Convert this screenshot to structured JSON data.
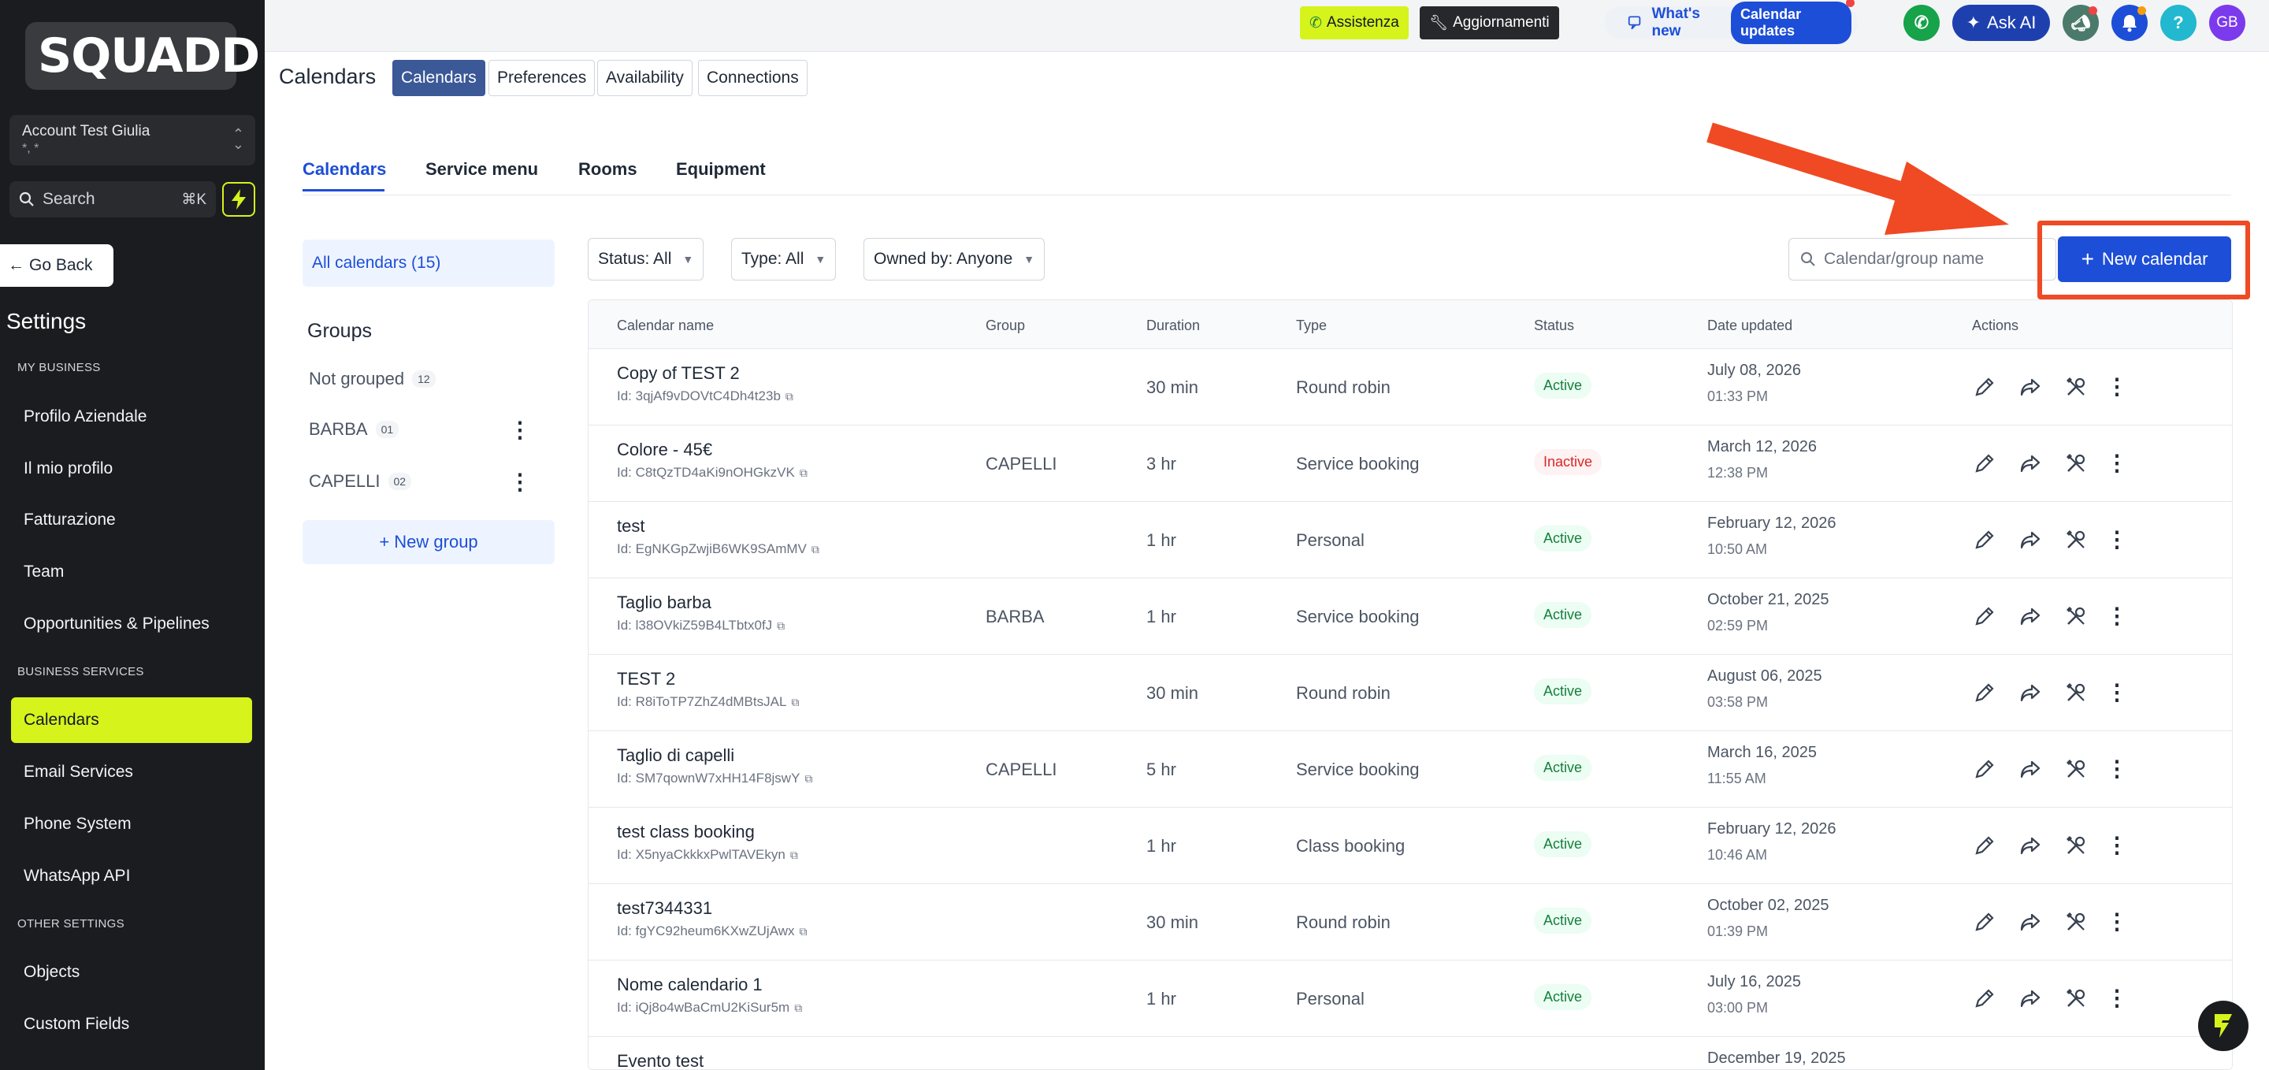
{
  "brand": {
    "name": "SQUADD",
    "accent": "#d6f31c",
    "primary": "#1d4ed8"
  },
  "sidebar": {
    "account_name": "Account Test Giulia",
    "account_sub": "*, *",
    "search_label": "Search",
    "search_shortcut": "⌘K",
    "go_back": "Go Back",
    "settings_title": "Settings",
    "sections": {
      "my_business": "MY BUSINESS",
      "business_services": "BUSINESS SERVICES",
      "other_settings": "OTHER SETTINGS"
    },
    "items": [
      "Profilo Aziendale",
      "Il mio profilo",
      "Fatturazione",
      "Team",
      "Opportunities & Pipelines",
      "Calendars",
      "Email Services",
      "Phone System",
      "WhatsApp API",
      "Objects",
      "Custom Fields"
    ]
  },
  "topbar": {
    "assistenza": "Assistenza",
    "aggiornamenti": "Aggiornamenti",
    "whats_new": "What's new",
    "calendar_updates": "Calendar updates",
    "ask_ai": "Ask AI",
    "help": "?",
    "avatar": "GB"
  },
  "page": {
    "title": "Calendars",
    "tabs": [
      "Calendars",
      "Preferences",
      "Availability",
      "Connections"
    ],
    "subtabs": [
      "Calendars",
      "Service menu",
      "Rooms",
      "Equipment"
    ]
  },
  "groups": {
    "all_calendars": "All calendars (15)",
    "title": "Groups",
    "items": [
      {
        "name": "Not grouped",
        "count": "12"
      },
      {
        "name": "BARBA",
        "count": "01"
      },
      {
        "name": "CAPELLI",
        "count": "02"
      }
    ],
    "new_group": "+ New group"
  },
  "filters": {
    "status": "Status: All",
    "type": "Type: All",
    "owner": "Owned by: Anyone",
    "search_placeholder": "Calendar/group name",
    "new_calendar": "New calendar"
  },
  "table": {
    "headers": [
      "Calendar name",
      "Group",
      "Duration",
      "Type",
      "Status",
      "Date updated",
      "Actions"
    ],
    "rows": [
      {
        "name": "Copy of TEST 2",
        "id": "Id: 3qjAf9vDOVtC4Dh4t23b",
        "group": "",
        "duration": "30 min",
        "type": "Round robin",
        "status": "Active",
        "date": "July 08, 2026",
        "time": "01:33 PM"
      },
      {
        "name": "Colore - 45€",
        "id": "Id: C8tQzTD4aKi9nOHGkzVK",
        "group": "CAPELLI",
        "duration": "3 hr",
        "type": "Service booking",
        "status": "Inactive",
        "date": "March 12, 2026",
        "time": "12:38 PM"
      },
      {
        "name": "test",
        "id": "Id: EgNKGpZwjiB6WK9SAmMV",
        "group": "",
        "duration": "1 hr",
        "type": "Personal",
        "status": "Active",
        "date": "February 12, 2026",
        "time": "10:50 AM"
      },
      {
        "name": "Taglio barba",
        "id": "Id: l38OVkiZ59B4LTbtx0fJ",
        "group": "BARBA",
        "duration": "1 hr",
        "type": "Service booking",
        "status": "Active",
        "date": "October 21, 2025",
        "time": "02:59 PM"
      },
      {
        "name": "TEST 2",
        "id": "Id: R8iToTP7ZhZ4dMBtsJAL",
        "group": "",
        "duration": "30 min",
        "type": "Round robin",
        "status": "Active",
        "date": "August 06, 2025",
        "time": "03:58 PM"
      },
      {
        "name": "Taglio di capelli",
        "id": "Id: SM7qownW7xHH14F8jswY",
        "group": "CAPELLI",
        "duration": "5 hr",
        "type": "Service booking",
        "status": "Active",
        "date": "March 16, 2025",
        "time": "11:55 AM"
      },
      {
        "name": "test class booking",
        "id": "Id: X5nyaCkkkxPwlTAVEkyn",
        "group": "",
        "duration": "1 hr",
        "type": "Class booking",
        "status": "Active",
        "date": "February 12, 2026",
        "time": "10:46 AM"
      },
      {
        "name": "test7344331",
        "id": "Id: fgYC92heum6KXwZUjAwx",
        "group": "",
        "duration": "30 min",
        "type": "Round robin",
        "status": "Active",
        "date": "October 02, 2025",
        "time": "01:39 PM"
      },
      {
        "name": "Nome calendario 1",
        "id": "Id: iQj8o4wBaCmU2KiSur5m",
        "group": "",
        "duration": "1 hr",
        "type": "Personal",
        "status": "Active",
        "date": "July 16, 2025",
        "time": "03:00 PM"
      },
      {
        "name": "Evento test",
        "id": "",
        "group": "",
        "duration": "",
        "type": "",
        "status": "",
        "date": "December 19, 2025",
        "time": ""
      }
    ]
  }
}
